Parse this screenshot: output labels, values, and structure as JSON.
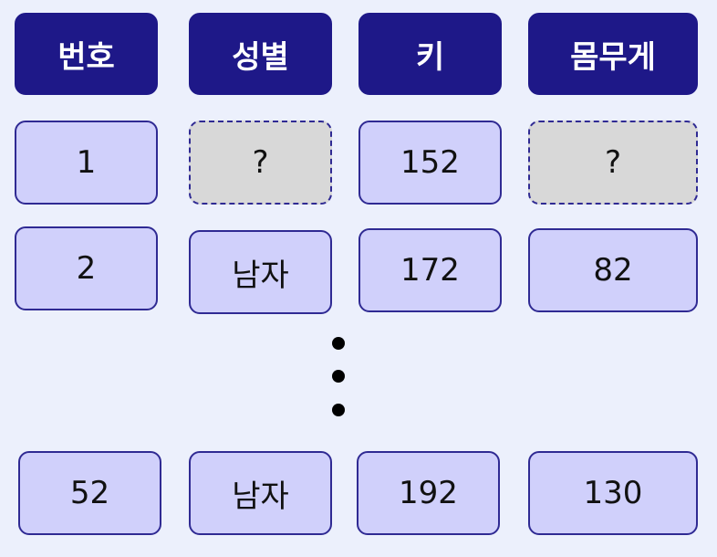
{
  "headers": [
    "번호",
    "성별",
    "키",
    "몸무게"
  ],
  "rows": [
    {
      "number": "1",
      "gender": "?",
      "height": "152",
      "weight": "?"
    },
    {
      "number": "2",
      "gender": "남자",
      "height": "172",
      "weight": "82"
    },
    {
      "number": "52",
      "gender": "남자",
      "height": "192",
      "weight": "130"
    }
  ]
}
